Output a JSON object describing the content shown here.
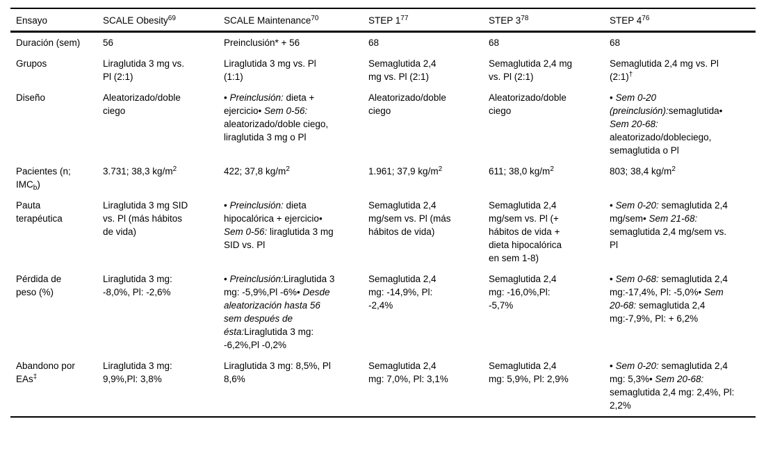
{
  "styles": {
    "background": "#ffffff",
    "text_color": "#000000",
    "rule_color": "#000000"
  },
  "table": {
    "columns": [
      {
        "id": "ensayo",
        "segments": [
          {
            "t": "Ensayo"
          }
        ]
      },
      {
        "id": "scale-obesity",
        "segments": [
          {
            "t": "SCALE Obesity"
          },
          {
            "t": "69",
            "f": "sup"
          }
        ]
      },
      {
        "id": "scale-maintenance",
        "segments": [
          {
            "t": "SCALE Maintenance"
          },
          {
            "t": "70",
            "f": "sup"
          }
        ]
      },
      {
        "id": "step-1",
        "segments": [
          {
            "t": "STEP 1"
          },
          {
            "t": "77",
            "f": "sup"
          }
        ]
      },
      {
        "id": "step-3",
        "segments": [
          {
            "t": "STEP 3"
          },
          {
            "t": "78",
            "f": "sup"
          }
        ]
      },
      {
        "id": "step-4",
        "segments": [
          {
            "t": "STEP 4"
          },
          {
            "t": "76",
            "f": "sup"
          }
        ]
      }
    ],
    "rows": [
      {
        "id": "duracion",
        "label": [
          {
            "t": "Duración (sem)"
          }
        ],
        "cells": [
          [
            {
              "t": "56"
            }
          ],
          [
            {
              "t": "Preinclusión* + 56"
            }
          ],
          [
            {
              "t": "68"
            }
          ],
          [
            {
              "t": "68"
            }
          ],
          [
            {
              "t": "68"
            }
          ]
        ]
      },
      {
        "id": "grupos",
        "label": [
          {
            "t": "Grupos"
          }
        ],
        "cells": [
          [
            {
              "t": "Liraglutida 3 mg vs. Pl (2:1)"
            }
          ],
          [
            {
              "t": "Liraglutida 3 mg vs. Pl (1:1)"
            }
          ],
          [
            {
              "t": "Semaglutida 2,4 mg vs. Pl (2:1)"
            }
          ],
          [
            {
              "t": "Semaglutida 2,4 mg vs. Pl (2:1)"
            }
          ],
          [
            {
              "t": "Semaglutida 2,4 mg vs. Pl (2:1)"
            },
            {
              "t": "†",
              "f": "sup"
            }
          ]
        ]
      },
      {
        "id": "diseno",
        "label": [
          {
            "t": "Diseño"
          }
        ],
        "cells": [
          [
            {
              "t": "Aleatorizado/doble ciego"
            }
          ],
          [
            {
              "t": "• "
            },
            {
              "t": "Preinclusión:",
              "f": "i"
            },
            {
              "t": " dieta + ejercicio• "
            },
            {
              "t": "Sem 0-56:",
              "f": "i"
            },
            {
              "t": " aleatorizado/doble ciego, liraglutida 3 mg o Pl"
            }
          ],
          [
            {
              "t": "Aleatorizado/doble ciego"
            }
          ],
          [
            {
              "t": "Aleatorizado/doble ciego"
            }
          ],
          [
            {
              "t": "• "
            },
            {
              "t": "Sem 0-20 (preinclusión):",
              "f": "i"
            },
            {
              "t": "semaglutida• "
            },
            {
              "t": "Sem 20-68:",
              "f": "i"
            },
            {
              "t": " aleatorizado/dobleciego, semaglutida o Pl"
            }
          ]
        ]
      },
      {
        "id": "pacientes",
        "label": [
          {
            "t": "Pacientes (n; IMC"
          },
          {
            "t": "b",
            "f": "sub"
          },
          {
            "t": ")"
          }
        ],
        "cells": [
          [
            {
              "t": "3.731; 38,3 kg/m"
            },
            {
              "t": "2",
              "f": "sup"
            }
          ],
          [
            {
              "t": "422; 37,8 kg/m"
            },
            {
              "t": "2",
              "f": "sup"
            }
          ],
          [
            {
              "t": "1.961; 37,9 kg/m"
            },
            {
              "t": "2",
              "f": "sup"
            }
          ],
          [
            {
              "t": "611; 38,0 kg/m"
            },
            {
              "t": "2",
              "f": "sup"
            }
          ],
          [
            {
              "t": "803; 38,4 kg/m"
            },
            {
              "t": "2",
              "f": "sup"
            }
          ]
        ]
      },
      {
        "id": "pauta-terapeutica",
        "label": [
          {
            "t": "Pauta terapéutica"
          }
        ],
        "cells": [
          [
            {
              "t": "Liraglutida 3 mg SID vs. Pl (más hábitos de vida)"
            }
          ],
          [
            {
              "t": "• "
            },
            {
              "t": "Preinclusión:",
              "f": "i"
            },
            {
              "t": " dieta hipocalórica + ejercicio• "
            },
            {
              "t": "Sem 0-56:",
              "f": "i"
            },
            {
              "t": " liraglutida 3 mg SID vs. Pl"
            }
          ],
          [
            {
              "t": "Semaglutida 2,4 mg/sem vs. Pl (más hábitos de vida)"
            }
          ],
          [
            {
              "t": "Semaglutida 2,4 mg/sem vs. Pl (+ hábitos de vida + dieta hipocalórica en sem 1-8)"
            }
          ],
          [
            {
              "t": "• "
            },
            {
              "t": "Sem 0-20:",
              "f": "i"
            },
            {
              "t": " semaglutida 2,4 mg/sem• "
            },
            {
              "t": "Sem 21-68:",
              "f": "i"
            },
            {
              "t": " semaglutida 2,4 mg/sem vs. Pl"
            }
          ]
        ]
      },
      {
        "id": "perdida-de-peso",
        "label": [
          {
            "t": "Pérdida de peso (%)"
          }
        ],
        "cells": [
          [
            {
              "t": "Liraglutida 3 mg: -8,0%, Pl: -2,6%"
            }
          ],
          [
            {
              "t": "• "
            },
            {
              "t": "Preinclusión:",
              "f": "i"
            },
            {
              "t": "Liraglutida 3 mg: -5,9%,Pl -6%• "
            },
            {
              "t": "Desde aleatorización hasta 56 sem después de ésta:",
              "f": "i"
            },
            {
              "t": "Liraglutida 3 mg: -6,2%,Pl -0,2%"
            }
          ],
          [
            {
              "t": "Semaglutida 2,4 mg: -14,9%, Pl: -2,4%"
            }
          ],
          [
            {
              "t": "Semaglutida 2,4 mg: -16,0%,Pl: -5,7%"
            }
          ],
          [
            {
              "t": "• "
            },
            {
              "t": "Sem 0-68:",
              "f": "i"
            },
            {
              "t": " semaglutida 2,4 mg:-17,4%, Pl: -5,0%• "
            },
            {
              "t": "Sem 20-68:",
              "f": "i"
            },
            {
              "t": " semaglutida 2,4 mg:-7,9%, Pl: + 6,2%"
            }
          ]
        ]
      },
      {
        "id": "abandono-por-eas",
        "label": [
          {
            "t": "Abandono por EAs"
          },
          {
            "t": "‡",
            "f": "sup"
          }
        ],
        "cells": [
          [
            {
              "t": "Liraglutida 3 mg: 9,9%,Pl: 3,8%"
            }
          ],
          [
            {
              "t": "Liraglutida 3 mg: 8,5%, Pl 8,6%"
            }
          ],
          [
            {
              "t": "Semaglutida 2,4 mg: 7,0%, Pl: 3,1%"
            }
          ],
          [
            {
              "t": "Semaglutida 2,4 mg: 5,9%, Pl: 2,9%"
            }
          ],
          [
            {
              "t": "• "
            },
            {
              "t": "Sem 0-20:",
              "f": "i"
            },
            {
              "t": " semaglutida 2,4 mg: 5,3%• "
            },
            {
              "t": "Sem 20-68:",
              "f": "i"
            },
            {
              "t": " semaglutida 2,4 mg: 2,4%, Pl: 2,2%"
            }
          ]
        ]
      }
    ]
  }
}
